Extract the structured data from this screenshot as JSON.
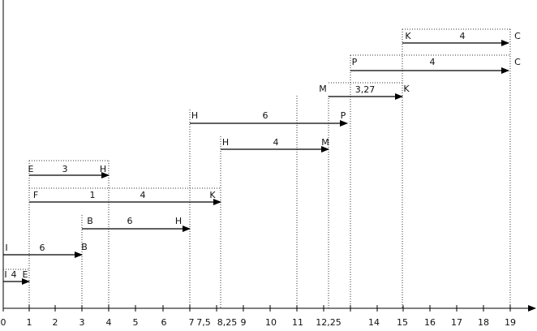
{
  "axis": {
    "labels": [
      "0",
      "1",
      "2",
      "3",
      "4",
      "5",
      "6",
      "7",
      "7,5",
      "8,25",
      "9",
      "10",
      "11",
      "12,25",
      "14",
      "15",
      "16",
      "17",
      "18",
      "19"
    ]
  },
  "arrows": [
    {
      "from": "K",
      "to": "C",
      "labels": [
        "4"
      ]
    },
    {
      "from": "P",
      "to": "C",
      "labels": [
        "4"
      ]
    },
    {
      "from": "M",
      "to": "K",
      "labels": [
        "3,27"
      ]
    },
    {
      "from": "H",
      "to": "P",
      "labels": [
        "6"
      ]
    },
    {
      "from": "H",
      "to": "M",
      "labels": [
        "4"
      ]
    },
    {
      "from": "E",
      "to": "H",
      "labels": [
        "3"
      ]
    },
    {
      "from": "F",
      "to": "K",
      "labels": [
        "1",
        "4"
      ]
    },
    {
      "from": "B",
      "to": "H",
      "labels": [
        "6"
      ]
    },
    {
      "from": "I",
      "to": "B",
      "labels": [
        "6"
      ]
    },
    {
      "from": "I",
      "to": "E",
      "labels": [
        "4"
      ]
    }
  ]
}
